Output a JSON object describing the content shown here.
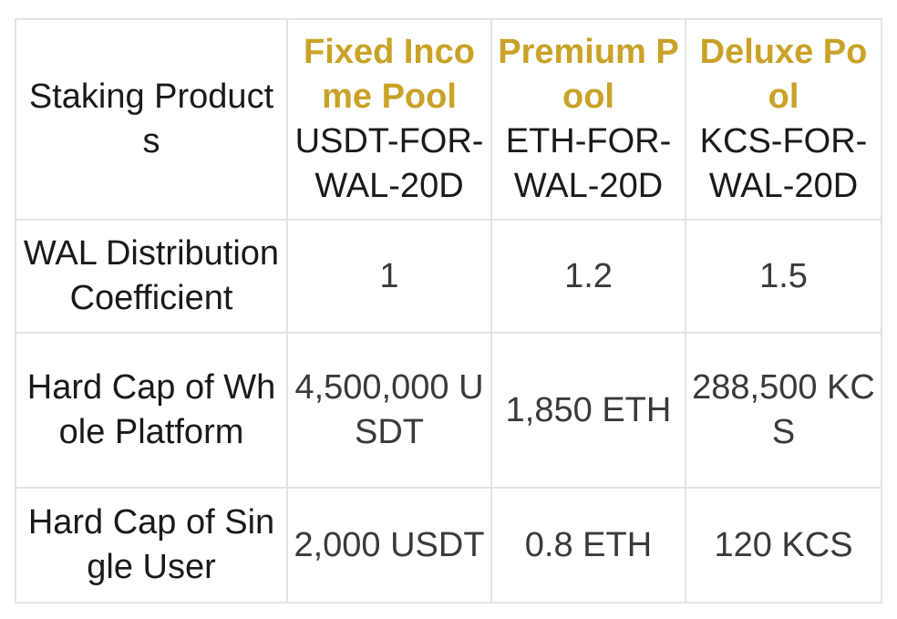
{
  "table": {
    "header_label": "Staking Products",
    "pools": [
      {
        "name": "Fixed Income Pool",
        "code": "USDT-FOR-WAL-20D"
      },
      {
        "name": "Premium Pool",
        "code": "ETH-FOR-WAL-20D"
      },
      {
        "name": "Deluxe Pool",
        "code": "KCS-FOR-WAL-20D"
      }
    ],
    "rows": [
      {
        "label": "WAL Distribution Coefficient",
        "values": [
          "1",
          "1.2",
          "1.5"
        ]
      },
      {
        "label": "Hard Cap of Whole Platform",
        "values": [
          "4,500,000 USDT",
          "1,850 ETH",
          "288,500 KCS"
        ]
      },
      {
        "label": "Hard Cap of Single User",
        "values": [
          "2,000 USDT",
          "0.8 ETH",
          "120 KCS"
        ]
      }
    ]
  },
  "colors": {
    "pool_name": "#c9a227",
    "border": "#e1e4e6",
    "text": "#1a1a1a"
  }
}
